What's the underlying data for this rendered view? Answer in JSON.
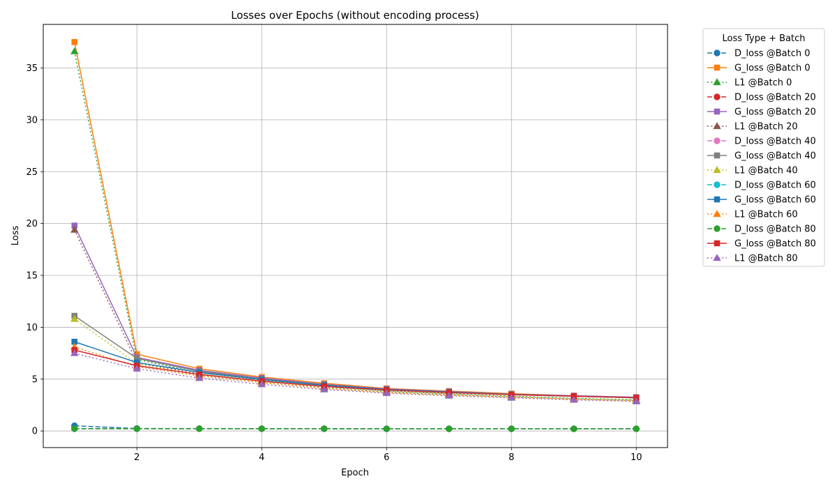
{
  "chart_data": {
    "type": "line",
    "title": "Losses over Epochs (without encoding process)",
    "xlabel": "Epoch",
    "ylabel": "Loss",
    "xlim": [
      0.5,
      10.5
    ],
    "ylim": [
      -1.6,
      39.2
    ],
    "xticks": [
      2,
      4,
      6,
      8,
      10
    ],
    "yticks": [
      0,
      5,
      10,
      15,
      20,
      25,
      30,
      35
    ],
    "grid": true,
    "legend": {
      "title": "Loss Type + Batch",
      "placement": "outside-right"
    },
    "x": [
      1,
      2,
      3,
      4,
      5,
      6,
      7,
      8,
      9,
      10
    ],
    "series": [
      {
        "name": "D_loss @Batch 0",
        "color": "#1f77b4",
        "linestyle": "dashed",
        "marker": "circle",
        "values": [
          0.5,
          0.24,
          0.23,
          0.22,
          0.22,
          0.21,
          0.21,
          0.21,
          0.21,
          0.21
        ]
      },
      {
        "name": "G_loss @Batch 0",
        "color": "#ff7f0e",
        "linestyle": "solid",
        "marker": "square",
        "values": [
          37.5,
          7.4,
          6.0,
          5.2,
          4.6,
          4.1,
          3.85,
          3.6,
          3.4,
          3.25
        ]
      },
      {
        "name": "L1 @Batch 0",
        "color": "#2ca02c",
        "linestyle": "dotted",
        "marker": "triangle",
        "values": [
          36.6,
          6.9,
          5.6,
          4.9,
          4.3,
          3.85,
          3.6,
          3.35,
          3.15,
          3.0
        ]
      },
      {
        "name": "D_loss @Batch 20",
        "color": "#d62728",
        "linestyle": "dashed",
        "marker": "circle",
        "values": [
          0.22,
          0.22,
          0.22,
          0.22,
          0.22,
          0.21,
          0.21,
          0.21,
          0.21,
          0.21
        ]
      },
      {
        "name": "G_loss @Batch 20",
        "color": "#9467bd",
        "linestyle": "solid",
        "marker": "square",
        "values": [
          19.8,
          7.1,
          5.85,
          5.1,
          4.5,
          4.05,
          3.8,
          3.55,
          3.4,
          3.25
        ]
      },
      {
        "name": "L1 @Batch 20",
        "color": "#8c564b",
        "linestyle": "dotted",
        "marker": "triangle",
        "values": [
          19.4,
          6.6,
          5.5,
          4.8,
          4.2,
          3.8,
          3.55,
          3.3,
          3.1,
          2.95
        ]
      },
      {
        "name": "D_loss @Batch 40",
        "color": "#e377c2",
        "linestyle": "dashed",
        "marker": "circle",
        "values": [
          0.22,
          0.22,
          0.22,
          0.22,
          0.22,
          0.21,
          0.21,
          0.21,
          0.21,
          0.21
        ]
      },
      {
        "name": "G_loss @Batch 40",
        "color": "#7f7f7f",
        "linestyle": "solid",
        "marker": "square",
        "values": [
          11.1,
          7.0,
          5.75,
          5.0,
          4.45,
          4.0,
          3.75,
          3.55,
          3.35,
          3.2
        ]
      },
      {
        "name": "L1 @Batch 40",
        "color": "#bcbd22",
        "linestyle": "dotted",
        "marker": "triangle",
        "values": [
          10.8,
          6.5,
          5.4,
          4.75,
          4.15,
          3.75,
          3.5,
          3.3,
          3.1,
          2.95
        ]
      },
      {
        "name": "D_loss @Batch 60",
        "color": "#17becf",
        "linestyle": "dashed",
        "marker": "circle",
        "values": [
          0.22,
          0.22,
          0.22,
          0.22,
          0.22,
          0.21,
          0.21,
          0.21,
          0.21,
          0.21
        ]
      },
      {
        "name": "G_loss @Batch 60",
        "color": "#1f77b4",
        "linestyle": "solid",
        "marker": "square",
        "values": [
          8.6,
          6.6,
          5.65,
          4.95,
          4.4,
          4.0,
          3.75,
          3.5,
          3.35,
          3.2
        ]
      },
      {
        "name": "L1 @Batch 60",
        "color": "#ff7f0e",
        "linestyle": "dotted",
        "marker": "triangle",
        "values": [
          8.1,
          6.2,
          5.3,
          4.65,
          4.1,
          3.7,
          3.45,
          3.25,
          3.05,
          2.9
        ]
      },
      {
        "name": "D_loss @Batch 80",
        "color": "#2ca02c",
        "linestyle": "dashed",
        "marker": "circle",
        "values": [
          0.22,
          0.22,
          0.22,
          0.22,
          0.22,
          0.21,
          0.21,
          0.21,
          0.21,
          0.21
        ]
      },
      {
        "name": "G_loss @Batch 80",
        "color": "#d62728",
        "linestyle": "solid",
        "marker": "square",
        "values": [
          7.8,
          6.3,
          5.45,
          4.8,
          4.3,
          3.95,
          3.7,
          3.5,
          3.35,
          3.2
        ]
      },
      {
        "name": "L1 @Batch 80",
        "color": "#9467bd",
        "linestyle": "dotted",
        "marker": "triangle",
        "values": [
          7.5,
          6.0,
          5.1,
          4.5,
          4.0,
          3.65,
          3.4,
          3.2,
          3.0,
          2.85
        ]
      }
    ]
  }
}
